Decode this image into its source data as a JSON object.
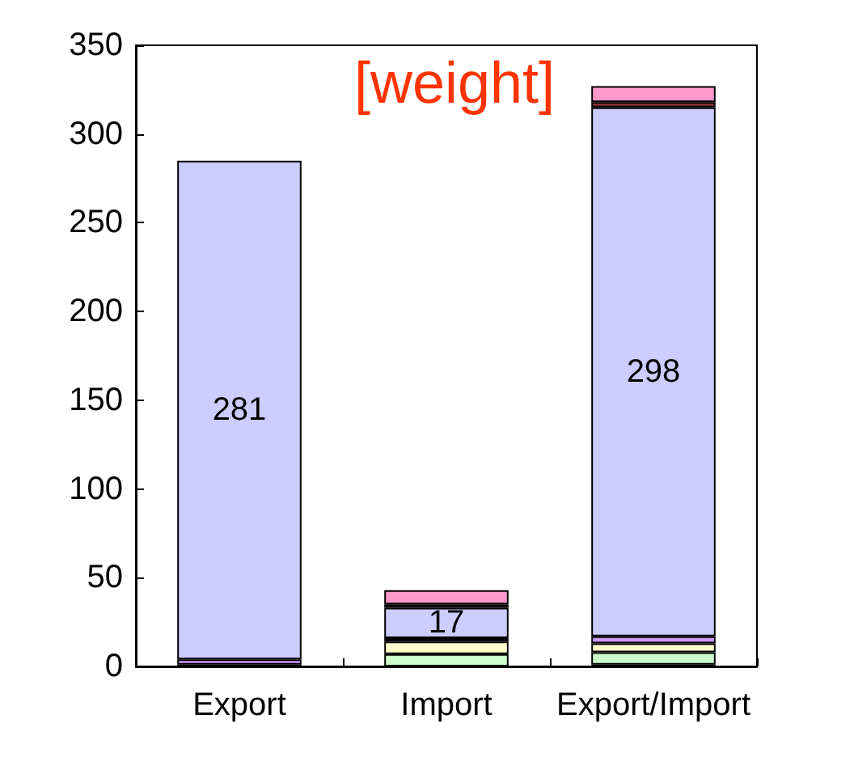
{
  "chart_data": {
    "type": "bar",
    "title": "[weight]",
    "stacked": true,
    "grid": false,
    "categories": [
      "Export",
      "Import",
      "Export/Import"
    ],
    "ylim": [
      0,
      350
    ],
    "yticks": [
      0,
      50,
      100,
      150,
      200,
      250,
      300,
      350
    ],
    "series": [
      {
        "color": "#333366",
        "values": [
          1,
          null,
          1
        ]
      },
      {
        "color": "#ccffcc",
        "values": [
          null,
          7,
          7
        ]
      },
      {
        "color": "#ffffcc",
        "values": [
          null,
          7,
          5
        ]
      },
      {
        "color": "#663366",
        "values": [
          null,
          2,
          null
        ]
      },
      {
        "color": "#cc99ff",
        "values": [
          3,
          null,
          4
        ]
      },
      {
        "color": "#ccccff",
        "values": [
          281,
          17,
          298
        ],
        "value_labels": [
          "281",
          "17",
          "298"
        ]
      },
      {
        "color": "#993333",
        "values": [
          null,
          2,
          3
        ]
      },
      {
        "color": "#ff99cc",
        "values": [
          null,
          8,
          9
        ]
      }
    ]
  }
}
